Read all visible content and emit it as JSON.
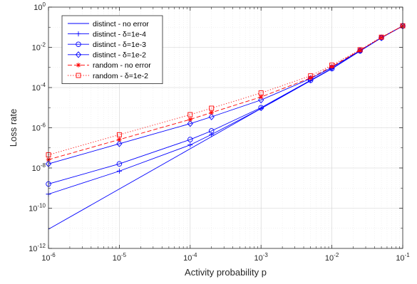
{
  "chart_data": {
    "type": "line",
    "xlabel": "Activity probability p",
    "ylabel": "Loss rate",
    "x_scale": "log",
    "y_scale": "log",
    "xlim": [
      1e-06,
      0.1
    ],
    "ylim": [
      1e-12,
      1
    ],
    "grid": true,
    "legend_placement": "top-left",
    "x_ticks": [
      {
        "base": "10",
        "exp": "-6"
      },
      {
        "base": "10",
        "exp": "-5"
      },
      {
        "base": "10",
        "exp": "-4"
      },
      {
        "base": "10",
        "exp": "-3"
      },
      {
        "base": "10",
        "exp": "-2"
      },
      {
        "base": "10",
        "exp": "-1"
      }
    ],
    "y_ticks": [
      {
        "base": "10",
        "exp": "-12"
      },
      {
        "base": "10",
        "exp": "-10"
      },
      {
        "base": "10",
        "exp": "-8"
      },
      {
        "base": "10",
        "exp": "-6"
      },
      {
        "base": "10",
        "exp": "-4"
      },
      {
        "base": "10",
        "exp": "-2"
      },
      {
        "base": "10",
        "exp": "0"
      }
    ],
    "x": [
      1e-06,
      1e-05,
      0.0001,
      0.0002,
      0.001,
      0.005,
      0.01,
      0.025,
      0.05,
      0.1
    ],
    "series": [
      {
        "name": "distinct - no error",
        "color": "#0000ff",
        "dash": "solid",
        "marker": "none",
        "values": [
          9e-12,
          9e-10,
          9e-08,
          3.6e-07,
          9e-06,
          0.00022,
          0.00086,
          0.0066,
          0.03,
          0.115
        ]
      },
      {
        "name": "distinct - δ=1e-4",
        "color": "#0000ff",
        "dash": "solid",
        "marker": "plus",
        "values": [
          5e-10,
          7e-09,
          1.4e-07,
          4.6e-07,
          9e-06,
          0.00022,
          0.00086,
          0.0066,
          0.03,
          0.115
        ]
      },
      {
        "name": "distinct - δ=1e-3",
        "color": "#0000ff",
        "dash": "solid",
        "marker": "circle",
        "values": [
          1.6e-09,
          1.6e-08,
          2.6e-07,
          7e-07,
          1e-05,
          0.00023,
          0.00088,
          0.0067,
          0.03,
          0.115
        ]
      },
      {
        "name": "distinct - δ=1e-2",
        "color": "#0000ff",
        "dash": "solid",
        "marker": "diamond",
        "values": [
          1.6e-08,
          1.6e-07,
          1.6e-06,
          3.5e-06,
          2.4e-05,
          0.00028,
          0.001,
          0.0069,
          0.03,
          0.115
        ]
      },
      {
        "name": "random - no error",
        "color": "#ff0000",
        "dash": "dash",
        "marker": "star",
        "values": [
          2.6e-08,
          2.6e-07,
          2.6e-06,
          5.7e-06,
          3.4e-05,
          0.0003,
          0.0011,
          0.0072,
          0.031,
          0.116
        ]
      },
      {
        "name": "random - δ=1e-2",
        "color": "#ff0000",
        "dash": "dot",
        "marker": "square",
        "values": [
          4.5e-08,
          4.5e-07,
          4.5e-06,
          9.4e-06,
          5.4e-05,
          0.00038,
          0.0013,
          0.0076,
          0.032,
          0.118
        ]
      }
    ]
  }
}
